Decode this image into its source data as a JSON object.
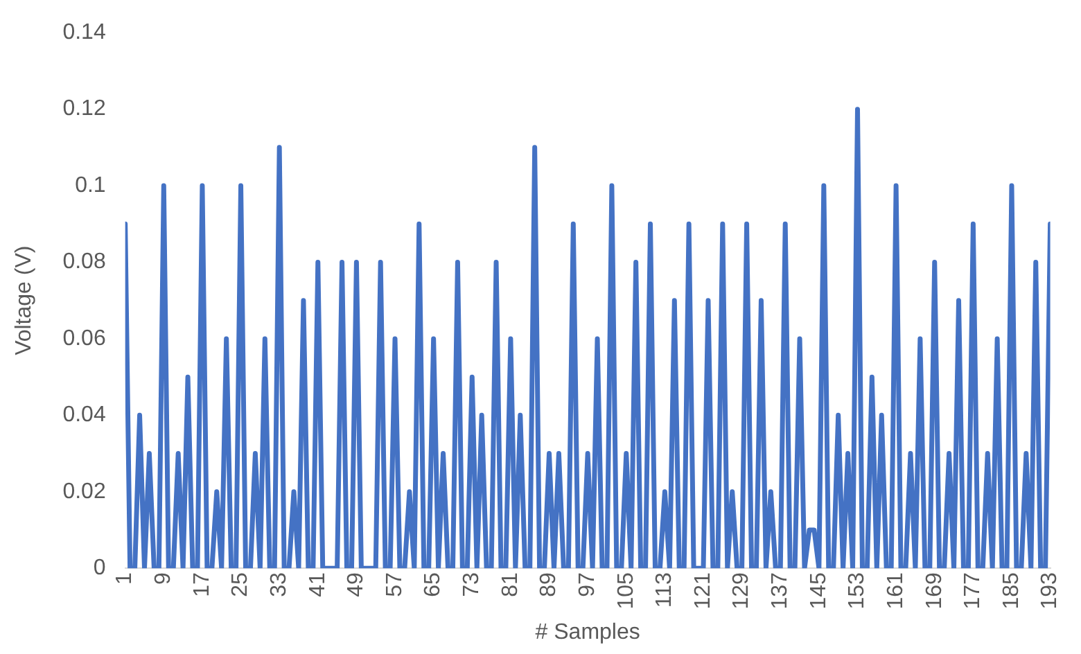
{
  "chart_data": {
    "type": "line",
    "xlabel": "# Samples",
    "ylabel": "Voltage (V)",
    "color": "#4472c4",
    "x": [
      1,
      2,
      3,
      4,
      5,
      6,
      7,
      8,
      9,
      10,
      11,
      12,
      13,
      14,
      15,
      16,
      17,
      18,
      19,
      20,
      21,
      22,
      23,
      24,
      25,
      26,
      27,
      28,
      29,
      30,
      31,
      32,
      33,
      34,
      35,
      36,
      37,
      38,
      39,
      40,
      41,
      42,
      43,
      44,
      45,
      46,
      47,
      48,
      49,
      50,
      51,
      52,
      53,
      54,
      55,
      56,
      57,
      58,
      59,
      60,
      61,
      62,
      63,
      64,
      65,
      66,
      67,
      68,
      69,
      70,
      71,
      72,
      73,
      74,
      75,
      76,
      77,
      78,
      79,
      80,
      81,
      82,
      83,
      84,
      85,
      86,
      87,
      88,
      89,
      90,
      91,
      92,
      93,
      94,
      95,
      96,
      97,
      98,
      99,
      100,
      101,
      102,
      103,
      104,
      105,
      106,
      107,
      108,
      109,
      110,
      111,
      112,
      113,
      114,
      115,
      116,
      117,
      118,
      119,
      120,
      121,
      122,
      123,
      124,
      125,
      126,
      127,
      128,
      129,
      130,
      131,
      132,
      133,
      134,
      135,
      136,
      137,
      138,
      139,
      140,
      141,
      142,
      143,
      144,
      145,
      146,
      147,
      148,
      149,
      150,
      151,
      152,
      153,
      154,
      155,
      156,
      157,
      158,
      159,
      160,
      161,
      162,
      163,
      164,
      165,
      166,
      167,
      168,
      169,
      170,
      171,
      172,
      173,
      174,
      175,
      176,
      177,
      178,
      179,
      180,
      181,
      182,
      183,
      184,
      185,
      186,
      187,
      188,
      189,
      190,
      191,
      192,
      193
    ],
    "values": [
      0.09,
      0,
      0,
      0.04,
      0,
      0.03,
      0,
      0,
      0.1,
      0,
      0,
      0.03,
      0,
      0.05,
      0,
      0,
      0.1,
      0,
      0,
      0.02,
      0,
      0.06,
      0,
      0,
      0.1,
      0,
      0,
      0.03,
      0,
      0.06,
      0,
      0,
      0.11,
      0,
      0,
      0.02,
      0,
      0.07,
      0,
      0,
      0.08,
      0,
      0,
      0,
      0,
      0.08,
      0,
      0,
      0.08,
      0,
      0,
      0,
      0,
      0.08,
      0,
      0,
      0.06,
      0,
      0,
      0.02,
      0,
      0.09,
      0,
      0,
      0.06,
      0,
      0.03,
      0,
      0,
      0.08,
      0,
      0,
      0.05,
      0,
      0.04,
      0,
      0,
      0.08,
      0,
      0,
      0.06,
      0,
      0.04,
      0,
      0,
      0.11,
      0,
      0,
      0.03,
      0,
      0.03,
      0,
      0,
      0.09,
      0,
      0,
      0.03,
      0,
      0.06,
      0,
      0,
      0.1,
      0,
      0,
      0.03,
      0,
      0.08,
      0,
      0,
      0.09,
      0,
      0,
      0.02,
      0,
      0.07,
      0,
      0,
      0.09,
      0,
      0,
      0,
      0.07,
      0,
      0,
      0.09,
      0,
      0.02,
      0,
      0,
      0.09,
      0,
      0,
      0.07,
      0,
      0.02,
      0,
      0,
      0.09,
      0,
      0,
      0.06,
      0,
      0.01,
      0.01,
      0,
      0.1,
      0,
      0,
      0.04,
      0,
      0.03,
      0,
      0.12,
      0,
      0,
      0.05,
      0,
      0.04,
      0,
      0,
      0.1,
      0,
      0,
      0.03,
      0,
      0.06,
      0,
      0,
      0.08,
      0,
      0,
      0.03,
      0,
      0.07,
      0,
      0,
      0.09,
      0,
      0,
      0.03,
      0,
      0.06,
      0,
      0,
      0.1,
      0,
      0,
      0.03,
      0,
      0.08,
      0,
      0,
      0.09
    ],
    "xlim": [
      1,
      193
    ],
    "xticks": [
      1,
      9,
      17,
      25,
      33,
      41,
      49,
      57,
      65,
      73,
      81,
      89,
      97,
      105,
      113,
      121,
      129,
      137,
      145,
      153,
      161,
      169,
      177,
      185,
      193
    ],
    "ylim": [
      0,
      0.14
    ],
    "yticks": [
      0,
      0.02,
      0.04,
      0.06,
      0.08,
      0.1,
      0.12,
      0.14
    ]
  }
}
